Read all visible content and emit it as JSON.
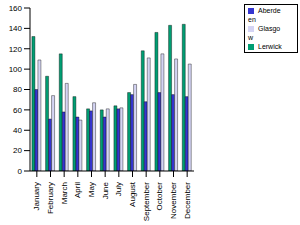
{
  "chart_data": {
    "type": "bar",
    "categories": [
      "January",
      "February",
      "March",
      "April",
      "May",
      "June",
      "July",
      "August",
      "September",
      "October",
      "November",
      "December"
    ],
    "series": [
      {
        "name": "Lerwick",
        "color": "#009e73",
        "values": [
          132,
          93,
          115,
          73,
          61,
          60,
          64,
          77,
          118,
          136,
          143,
          144
        ]
      },
      {
        "name": "Aberdeen",
        "color": "#3535d0",
        "values": [
          80,
          51,
          58,
          53,
          59,
          53,
          61,
          75,
          68,
          77,
          75,
          73
        ]
      },
      {
        "name": "Glasgow",
        "color": "#d4d4f4",
        "values": [
          109,
          74,
          86,
          50,
          67,
          61,
          62,
          85,
          111,
          115,
          110,
          105
        ]
      }
    ],
    "ylim": [
      0,
      160
    ],
    "yticks": [
      0,
      20,
      40,
      60,
      80,
      100,
      120,
      140,
      160
    ],
    "grid": false,
    "legend": "upper right"
  }
}
